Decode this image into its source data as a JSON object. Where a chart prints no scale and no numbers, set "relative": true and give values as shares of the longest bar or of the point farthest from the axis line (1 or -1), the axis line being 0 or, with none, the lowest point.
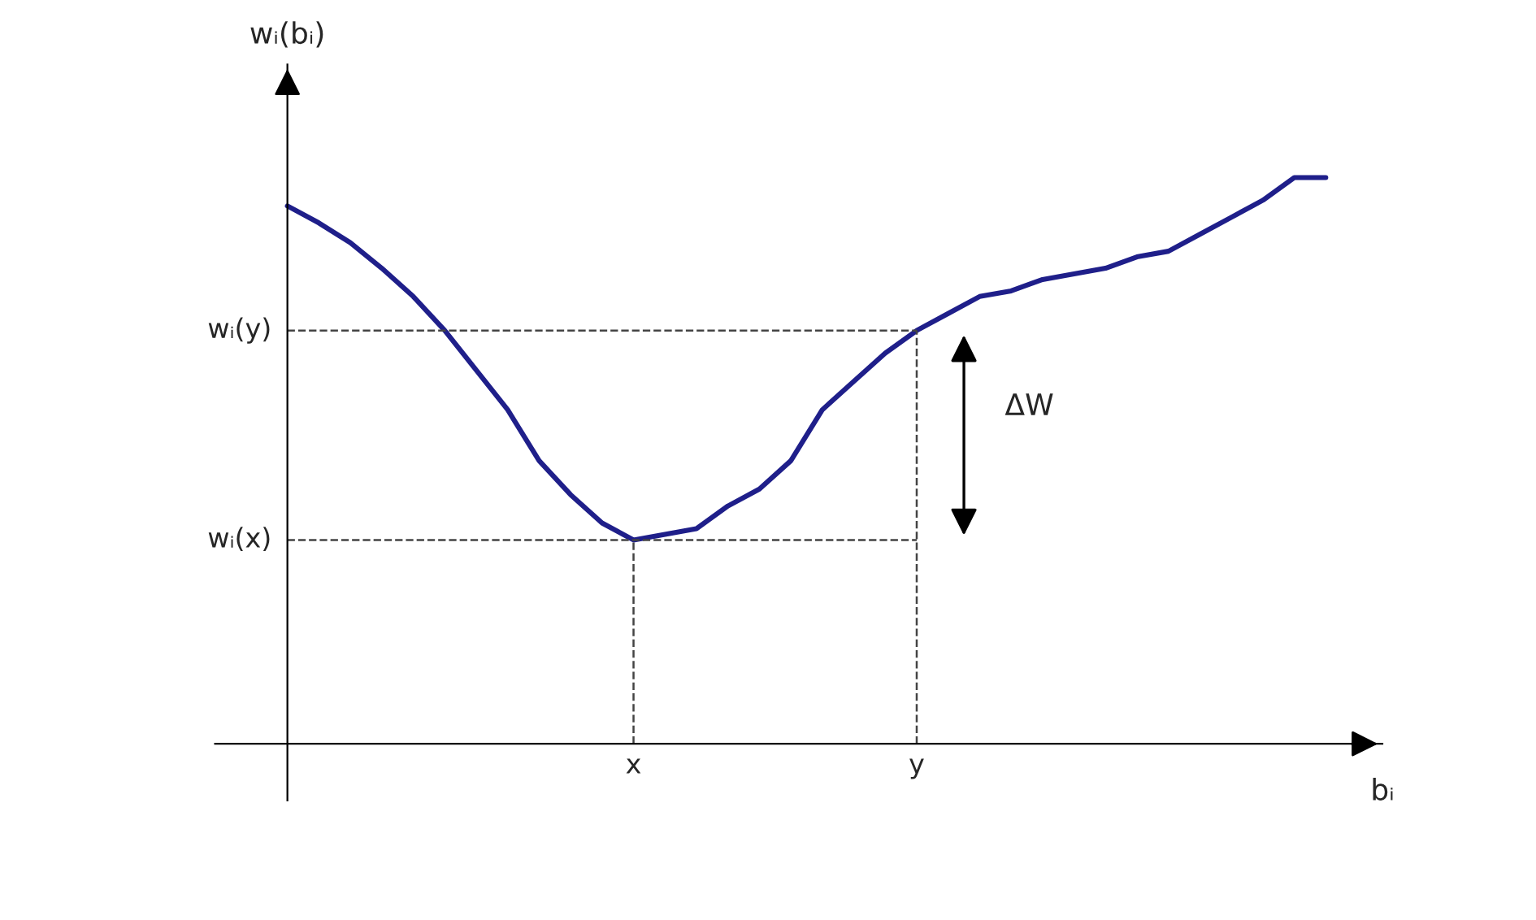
{
  "chart_data": {
    "type": "line",
    "relative": true,
    "xlabel": "bᵢ",
    "ylabel": "wᵢ(bᵢ)",
    "categories": [
      null,
      null,
      null,
      null,
      null,
      null,
      null,
      null,
      null,
      null,
      null,
      "x",
      null,
      null,
      null,
      null,
      null,
      null,
      null,
      null,
      "y",
      null,
      null,
      null,
      null,
      null,
      null,
      null,
      null,
      null,
      null,
      null,
      null,
      null
    ],
    "series": [
      {
        "color": "#1f1f8a",
        "values": [
          0.95,
          0.92,
          0.885,
          0.84,
          0.79,
          0.73,
          0.66,
          0.59,
          0.5,
          0.44,
          0.39,
          0.36,
          0.37,
          0.38,
          0.42,
          0.45,
          0.5,
          0.59,
          0.64,
          0.69,
          0.73,
          0.76,
          0.79,
          0.8,
          0.82,
          0.83,
          0.84,
          0.86,
          0.87,
          0.9,
          0.93,
          0.96,
          1.0,
          1.0
        ]
      }
    ],
    "ref_lines": [
      {
        "axis": "x",
        "value": "x",
        "line_style": "dashed"
      },
      {
        "axis": "x",
        "value": "y",
        "line_style": "dashed"
      },
      {
        "axis": "y",
        "value": 0.36,
        "label": "wᵢ(x)",
        "line_style": "dashed"
      },
      {
        "axis": "y",
        "value": 0.73,
        "label": "wᵢ(y)",
        "line_style": "dashed"
      }
    ],
    "annotations": [
      "ΔW"
    ],
    "grid": false,
    "legend": false,
    "marker": "none",
    "line_style": "solid"
  }
}
